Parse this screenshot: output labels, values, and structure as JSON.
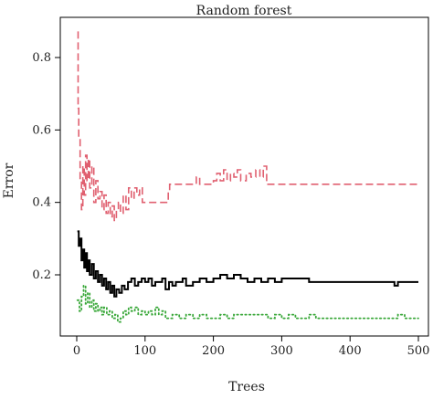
{
  "chart_data": {
    "type": "line",
    "title": "Random forest",
    "xlabel": "Trees",
    "ylabel": "Error",
    "xlim": [
      0,
      500
    ],
    "ylim": [
      0.05,
      0.88
    ],
    "x_ticks": [
      0,
      100,
      200,
      300,
      400,
      500
    ],
    "y_ticks": [
      0.2,
      0.4,
      0.6,
      0.8
    ],
    "grid": false,
    "legend": "none",
    "series": [
      {
        "color": "#e06070",
        "style": "dashed",
        "points": [
          [
            1,
            0.87
          ],
          [
            2,
            0.66
          ],
          [
            3,
            0.58
          ],
          [
            5,
            0.46
          ],
          [
            7,
            0.38
          ],
          [
            9,
            0.5
          ],
          [
            11,
            0.42
          ],
          [
            13,
            0.53
          ],
          [
            15,
            0.46
          ],
          [
            17,
            0.52
          ],
          [
            19,
            0.44
          ],
          [
            22,
            0.5
          ],
          [
            25,
            0.4
          ],
          [
            28,
            0.46
          ],
          [
            31,
            0.41
          ],
          [
            34,
            0.43
          ],
          [
            37,
            0.38
          ],
          [
            40,
            0.42
          ],
          [
            43,
            0.37
          ],
          [
            46,
            0.4
          ],
          [
            49,
            0.36
          ],
          [
            52,
            0.39
          ],
          [
            55,
            0.35
          ],
          [
            58,
            0.38
          ],
          [
            61,
            0.4
          ],
          [
            64,
            0.37
          ],
          [
            68,
            0.42
          ],
          [
            72,
            0.38
          ],
          [
            76,
            0.44
          ],
          [
            80,
            0.41
          ],
          [
            84,
            0.44
          ],
          [
            88,
            0.42
          ],
          [
            92,
            0.44
          ],
          [
            96,
            0.4
          ],
          [
            100,
            0.4
          ],
          [
            110,
            0.4
          ],
          [
            120,
            0.4
          ],
          [
            130,
            0.4
          ],
          [
            134,
            0.43
          ],
          [
            136,
            0.45
          ],
          [
            150,
            0.45
          ],
          [
            170,
            0.45
          ],
          [
            175,
            0.47
          ],
          [
            180,
            0.45
          ],
          [
            190,
            0.45
          ],
          [
            200,
            0.46
          ],
          [
            205,
            0.48
          ],
          [
            210,
            0.46
          ],
          [
            215,
            0.49
          ],
          [
            220,
            0.46
          ],
          [
            225,
            0.48
          ],
          [
            230,
            0.47
          ],
          [
            235,
            0.49
          ],
          [
            240,
            0.46
          ],
          [
            248,
            0.48
          ],
          [
            255,
            0.47
          ],
          [
            262,
            0.49
          ],
          [
            268,
            0.47
          ],
          [
            273,
            0.5
          ],
          [
            278,
            0.45
          ],
          [
            300,
            0.45
          ],
          [
            350,
            0.45
          ],
          [
            400,
            0.45
          ],
          [
            450,
            0.45
          ],
          [
            500,
            0.45
          ]
        ]
      },
      {
        "color": "#000000",
        "style": "solid",
        "points": [
          [
            1,
            0.32
          ],
          [
            3,
            0.28
          ],
          [
            5,
            0.3
          ],
          [
            7,
            0.24
          ],
          [
            9,
            0.27
          ],
          [
            11,
            0.22
          ],
          [
            13,
            0.26
          ],
          [
            15,
            0.21
          ],
          [
            17,
            0.24
          ],
          [
            19,
            0.2
          ],
          [
            22,
            0.23
          ],
          [
            25,
            0.19
          ],
          [
            28,
            0.21
          ],
          [
            31,
            0.18
          ],
          [
            34,
            0.2
          ],
          [
            37,
            0.17
          ],
          [
            40,
            0.19
          ],
          [
            43,
            0.16
          ],
          [
            46,
            0.18
          ],
          [
            49,
            0.15
          ],
          [
            52,
            0.17
          ],
          [
            55,
            0.14
          ],
          [
            58,
            0.16
          ],
          [
            62,
            0.15
          ],
          [
            66,
            0.17
          ],
          [
            70,
            0.16
          ],
          [
            75,
            0.18
          ],
          [
            80,
            0.19
          ],
          [
            85,
            0.17
          ],
          [
            90,
            0.18
          ],
          [
            95,
            0.19
          ],
          [
            100,
            0.18
          ],
          [
            105,
            0.19
          ],
          [
            110,
            0.17
          ],
          [
            115,
            0.18
          ],
          [
            120,
            0.18
          ],
          [
            125,
            0.19
          ],
          [
            130,
            0.16
          ],
          [
            135,
            0.18
          ],
          [
            140,
            0.17
          ],
          [
            145,
            0.18
          ],
          [
            150,
            0.18
          ],
          [
            155,
            0.19
          ],
          [
            160,
            0.17
          ],
          [
            170,
            0.18
          ],
          [
            180,
            0.19
          ],
          [
            190,
            0.18
          ],
          [
            200,
            0.19
          ],
          [
            210,
            0.2
          ],
          [
            220,
            0.19
          ],
          [
            230,
            0.2
          ],
          [
            240,
            0.19
          ],
          [
            250,
            0.18
          ],
          [
            260,
            0.19
          ],
          [
            270,
            0.18
          ],
          [
            280,
            0.19
          ],
          [
            290,
            0.18
          ],
          [
            300,
            0.19
          ],
          [
            320,
            0.19
          ],
          [
            340,
            0.18
          ],
          [
            360,
            0.18
          ],
          [
            380,
            0.18
          ],
          [
            400,
            0.18
          ],
          [
            420,
            0.18
          ],
          [
            440,
            0.18
          ],
          [
            460,
            0.18
          ],
          [
            465,
            0.17
          ],
          [
            470,
            0.18
          ],
          [
            480,
            0.18
          ],
          [
            500,
            0.18
          ]
        ]
      },
      {
        "color": "#3aa83a",
        "style": "dotted",
        "points": [
          [
            1,
            0.13
          ],
          [
            4,
            0.1
          ],
          [
            7,
            0.14
          ],
          [
            10,
            0.17
          ],
          [
            13,
            0.12
          ],
          [
            16,
            0.15
          ],
          [
            19,
            0.11
          ],
          [
            22,
            0.13
          ],
          [
            25,
            0.1
          ],
          [
            28,
            0.12
          ],
          [
            31,
            0.1
          ],
          [
            34,
            0.11
          ],
          [
            37,
            0.09
          ],
          [
            40,
            0.11
          ],
          [
            44,
            0.09
          ],
          [
            48,
            0.1
          ],
          [
            52,
            0.08
          ],
          [
            56,
            0.09
          ],
          [
            60,
            0.07
          ],
          [
            64,
            0.08
          ],
          [
            68,
            0.1
          ],
          [
            72,
            0.09
          ],
          [
            76,
            0.11
          ],
          [
            80,
            0.1
          ],
          [
            85,
            0.11
          ],
          [
            90,
            0.09
          ],
          [
            95,
            0.1
          ],
          [
            100,
            0.09
          ],
          [
            105,
            0.1
          ],
          [
            110,
            0.09
          ],
          [
            115,
            0.11
          ],
          [
            120,
            0.09
          ],
          [
            125,
            0.1
          ],
          [
            130,
            0.08
          ],
          [
            140,
            0.09
          ],
          [
            150,
            0.08
          ],
          [
            160,
            0.09
          ],
          [
            170,
            0.08
          ],
          [
            180,
            0.09
          ],
          [
            190,
            0.08
          ],
          [
            200,
            0.08
          ],
          [
            210,
            0.09
          ],
          [
            220,
            0.08
          ],
          [
            230,
            0.09
          ],
          [
            240,
            0.09
          ],
          [
            250,
            0.09
          ],
          [
            260,
            0.09
          ],
          [
            270,
            0.09
          ],
          [
            280,
            0.08
          ],
          [
            290,
            0.09
          ],
          [
            300,
            0.08
          ],
          [
            310,
            0.09
          ],
          [
            320,
            0.08
          ],
          [
            330,
            0.08
          ],
          [
            340,
            0.09
          ],
          [
            350,
            0.08
          ],
          [
            360,
            0.08
          ],
          [
            370,
            0.08
          ],
          [
            380,
            0.08
          ],
          [
            390,
            0.08
          ],
          [
            400,
            0.08
          ],
          [
            410,
            0.08
          ],
          [
            420,
            0.08
          ],
          [
            430,
            0.08
          ],
          [
            440,
            0.08
          ],
          [
            450,
            0.08
          ],
          [
            460,
            0.08
          ],
          [
            470,
            0.09
          ],
          [
            480,
            0.08
          ],
          [
            490,
            0.08
          ],
          [
            500,
            0.08
          ]
        ]
      }
    ]
  }
}
